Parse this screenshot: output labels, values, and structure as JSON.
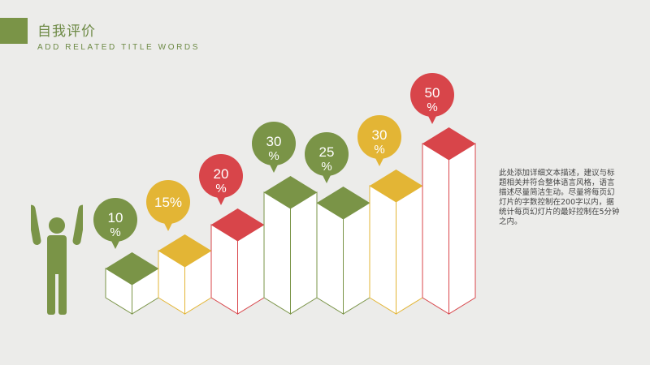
{
  "header": {
    "title": "自我评价",
    "subtitle": "ADD RELATED TITLE WORDS"
  },
  "body_text": "此处添加详细文本描述，建议与标题相关并符合整体语言风格，语言描述尽量简洁生动。尽量将每页幻灯片的字数控制在200字以内，据统计每页幻灯片的最好控制在5分钟之内。",
  "icons": {
    "person": "person-arms-raised-icon"
  },
  "colors": {
    "green": "#7a9447",
    "yellow": "#e3b535",
    "red": "#d8454a"
  },
  "chart_data": {
    "type": "bar",
    "title": "",
    "categories": [
      "",
      "",
      "",
      "",
      "",
      "",
      ""
    ],
    "values": [
      10,
      15,
      20,
      30,
      25,
      30,
      50
    ],
    "labels": [
      "10%",
      "15%",
      "20%",
      "30%",
      "25%",
      "30%",
      "50%"
    ],
    "colors": [
      "green",
      "yellow",
      "red",
      "green",
      "green",
      "yellow",
      "red"
    ],
    "ylim": [
      0,
      60
    ],
    "grid": false,
    "style": "isometric-columns-with-callout-bubbles"
  }
}
